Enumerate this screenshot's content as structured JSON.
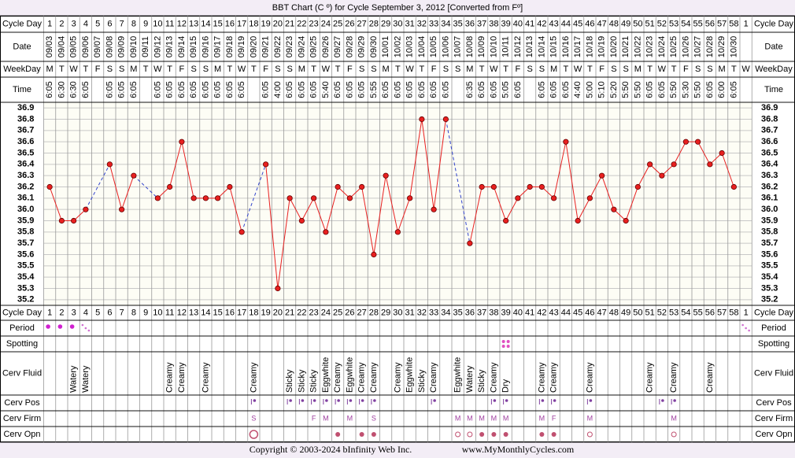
{
  "title": "BBT Chart (C º) for Cycle September 3, 2012  [Converted from Fº]",
  "row_labels": {
    "cycle_day": "Cycle Day",
    "date": "Date",
    "weekday": "WeekDay",
    "time": "Time",
    "period": "Period",
    "spotting": "Spotting",
    "cerv_fluid": "Cerv Fluid",
    "cerv_pos": "Cerv Pos",
    "cerv_firm": "Cerv Firm",
    "cerv_opn": "Cerv Opn"
  },
  "chart_data": {
    "type": "line",
    "categories": [
      1,
      2,
      3,
      4,
      5,
      6,
      7,
      8,
      9,
      10,
      11,
      12,
      13,
      14,
      15,
      16,
      17,
      18,
      19,
      20,
      21,
      22,
      23,
      24,
      25,
      26,
      27,
      28,
      29,
      30,
      31,
      32,
      33,
      34,
      35,
      36,
      37,
      38,
      39,
      40,
      41,
      42,
      43,
      44,
      45,
      46,
      47,
      48,
      49,
      50,
      51,
      52,
      53,
      54,
      55,
      56,
      57,
      58,
      1
    ],
    "dates": [
      "09/03",
      "09/04",
      "09/05",
      "09/06",
      "09/07",
      "09/08",
      "09/09",
      "09/10",
      "09/11",
      "09/12",
      "09/13",
      "09/14",
      "09/15",
      "09/16",
      "09/17",
      "09/18",
      "09/19",
      "09/20",
      "09/21",
      "09/22",
      "09/23",
      "09/24",
      "09/25",
      "09/26",
      "09/27",
      "09/28",
      "09/29",
      "09/30",
      "10/01",
      "10/02",
      "10/03",
      "10/04",
      "10/05",
      "10/06",
      "10/07",
      "10/08",
      "10/09",
      "10/10",
      "10/11",
      "10/12",
      "10/13",
      "10/14",
      "10/15",
      "10/16",
      "10/17",
      "10/18",
      "10/19",
      "10/20",
      "10/21",
      "10/22",
      "10/23",
      "10/24",
      "10/25",
      "10/26",
      "10/27",
      "10/28",
      "10/29",
      "10/30",
      null
    ],
    "weekdays": [
      "M",
      "T",
      "W",
      "T",
      "F",
      "S",
      "S",
      "M",
      "T",
      "W",
      "T",
      "F",
      "S",
      "S",
      "M",
      "T",
      "W",
      "T",
      "F",
      "S",
      "S",
      "M",
      "T",
      "W",
      "T",
      "F",
      "S",
      "S",
      "M",
      "T",
      "W",
      "T",
      "F",
      "S",
      "S",
      "M",
      "T",
      "W",
      "T",
      "F",
      "S",
      "S",
      "M",
      "T",
      "W",
      "T",
      "F",
      "S",
      "S",
      "M",
      "T",
      "W",
      "T",
      "F",
      "S",
      "S",
      "M",
      "T",
      "W"
    ],
    "times": [
      "6:05",
      "6:30",
      "6:30",
      "6:05",
      null,
      "6:05",
      "6:05",
      "6:05",
      null,
      "6:05",
      "6:05",
      "6:05",
      "6:05",
      "6:05",
      "6:05",
      "6:05",
      "6:05",
      null,
      "6:05",
      "4:00",
      "6:05",
      "6:05",
      "6:05",
      "5:40",
      "6:05",
      "6:05",
      "6:05",
      "5:55",
      "6:05",
      "6:05",
      "6:05",
      "6:05",
      "6:05",
      "6:05",
      null,
      "6:35",
      "6:05",
      "6:05",
      "5:05",
      "6:05",
      null,
      "6:05",
      "6:05",
      "6:05",
      "4:40",
      "5:00",
      "5:10",
      "5:20",
      "5:50",
      "5:50",
      "6:05",
      "6:05",
      "5:50",
      "5:30",
      "5:50",
      "6:05",
      "6:00",
      "6:05",
      null
    ],
    "values": [
      36.2,
      35.9,
      35.9,
      36.0,
      null,
      36.4,
      36.0,
      36.3,
      null,
      36.1,
      36.2,
      36.6,
      36.1,
      36.1,
      36.1,
      36.2,
      35.8,
      null,
      36.4,
      35.3,
      36.1,
      35.9,
      36.1,
      35.8,
      36.2,
      36.1,
      36.2,
      35.6,
      36.3,
      35.8,
      36.1,
      36.8,
      36.0,
      36.8,
      null,
      35.7,
      36.2,
      36.2,
      35.9,
      36.1,
      36.2,
      36.2,
      36.1,
      36.6,
      35.9,
      36.1,
      36.3,
      36.0,
      35.9,
      36.2,
      36.4,
      36.3,
      36.4,
      36.6,
      36.6,
      36.4,
      36.5,
      36.2,
      null
    ],
    "color": "#e82020",
    "gap_color": "#3344cc",
    "ylim": [
      35.15,
      36.95
    ],
    "yticks": [
      36.9,
      36.8,
      36.7,
      36.6,
      36.5,
      36.4,
      36.3,
      36.2,
      36.1,
      {
        "value": 36,
        "label": "36.0"
      },
      35.9,
      35.8,
      35.7,
      35.6,
      35.5,
      35.4,
      35.3,
      35.2
    ],
    "grid": true
  },
  "observations": {
    "period": [
      "heavy",
      "heavy",
      "heavy",
      "light",
      null,
      null,
      null,
      null,
      null,
      null,
      null,
      null,
      null,
      null,
      null,
      null,
      null,
      null,
      null,
      null,
      null,
      null,
      null,
      null,
      null,
      null,
      null,
      null,
      null,
      null,
      null,
      null,
      null,
      null,
      null,
      null,
      null,
      null,
      null,
      null,
      null,
      null,
      null,
      null,
      null,
      null,
      null,
      null,
      null,
      null,
      null,
      null,
      null,
      null,
      null,
      null,
      null,
      null,
      "light"
    ],
    "spotting": [
      null,
      null,
      null,
      null,
      null,
      null,
      null,
      null,
      null,
      null,
      null,
      null,
      null,
      null,
      null,
      null,
      null,
      null,
      null,
      null,
      null,
      null,
      null,
      null,
      null,
      null,
      null,
      null,
      null,
      null,
      null,
      null,
      null,
      null,
      null,
      null,
      null,
      null,
      "spot",
      null,
      null,
      null,
      null,
      null,
      null,
      null,
      null,
      null,
      null,
      null,
      null,
      null,
      null,
      null,
      null,
      null,
      null,
      null,
      null
    ],
    "cerv_fluid": [
      null,
      null,
      "Watery",
      "Watery",
      null,
      null,
      null,
      null,
      null,
      null,
      "Creamy",
      "Creamy",
      null,
      "Creamy",
      null,
      null,
      null,
      "Creamy",
      null,
      null,
      "Sticky",
      "Sticky",
      "Sticky",
      "Eggwhite",
      "Creamy",
      "Eggwhite",
      "Creamy",
      "Creamy",
      null,
      "Creamy",
      "Eggwhite",
      "Sticky",
      "Creamy",
      null,
      "Eggwhite",
      "Watery",
      "Sticky",
      "Creamy",
      "Dry",
      null,
      null,
      "Creamy",
      "Creamy",
      null,
      null,
      "Creamy",
      null,
      null,
      null,
      null,
      "Creamy",
      null,
      "Creamy",
      null,
      null,
      "Creamy",
      null,
      null,
      null
    ],
    "cerv_pos": [
      null,
      null,
      null,
      null,
      null,
      null,
      null,
      null,
      null,
      null,
      null,
      null,
      null,
      null,
      null,
      null,
      null,
      true,
      null,
      null,
      true,
      true,
      true,
      true,
      true,
      true,
      true,
      true,
      null,
      null,
      null,
      null,
      true,
      null,
      null,
      null,
      null,
      true,
      true,
      null,
      null,
      true,
      true,
      null,
      null,
      true,
      null,
      null,
      null,
      null,
      null,
      true,
      true,
      null,
      null,
      null,
      null,
      null,
      null
    ],
    "cerv_firm": [
      null,
      null,
      null,
      null,
      null,
      null,
      null,
      null,
      null,
      null,
      null,
      null,
      null,
      null,
      null,
      null,
      null,
      "S",
      null,
      null,
      null,
      null,
      "F",
      "M",
      null,
      "M",
      null,
      "S",
      null,
      null,
      null,
      null,
      null,
      null,
      "M",
      "M",
      "M",
      "M",
      "M",
      null,
      null,
      "M",
      "F",
      null,
      null,
      "M",
      null,
      null,
      null,
      null,
      null,
      null,
      "M",
      null,
      null,
      null,
      null,
      null,
      null
    ],
    "cerv_opn": [
      null,
      null,
      null,
      null,
      null,
      null,
      null,
      null,
      null,
      null,
      null,
      null,
      null,
      null,
      null,
      null,
      null,
      "large-open",
      null,
      null,
      null,
      null,
      null,
      null,
      "filled",
      null,
      "filled",
      "filled",
      null,
      null,
      null,
      null,
      null,
      null,
      "open",
      "open",
      "filled",
      "filled",
      "filled",
      null,
      null,
      "filled",
      "filled",
      null,
      null,
      "open",
      null,
      null,
      null,
      null,
      null,
      null,
      "open",
      null,
      null,
      null,
      null,
      null,
      null
    ]
  },
  "footer": {
    "copyright": "Copyright © 2003-2024 bInfinity Web Inc.",
    "site": "www.MyMonthlyCycles.com"
  }
}
